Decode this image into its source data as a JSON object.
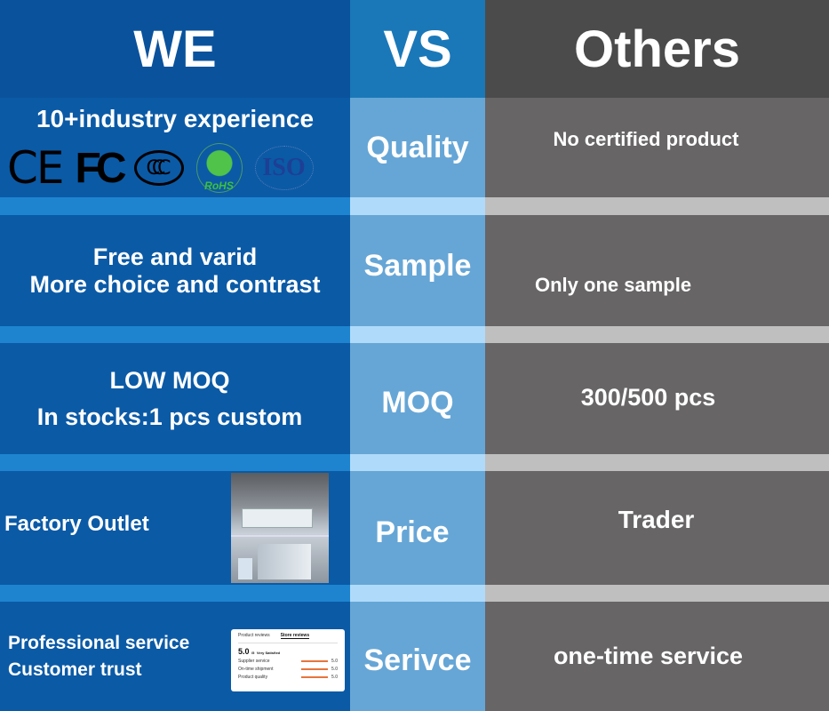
{
  "header": {
    "we": "WE",
    "vs": "VS",
    "others": "Others"
  },
  "rows": [
    {
      "we": "10+industry experience",
      "vs": "Quality",
      "others": "No certified product",
      "certs": [
        "CE",
        "FC",
        "CCC",
        "RoHS",
        "ISO"
      ]
    },
    {
      "we_line1": "Free and varid",
      "we_line2": "More choice and contrast",
      "vs": "Sample",
      "others": "Only one sample"
    },
    {
      "we_line1": "LOW MOQ",
      "we_line2": "In stocks:1 pcs custom",
      "vs": "MOQ",
      "others": "300/500 pcs"
    },
    {
      "we": "Factory Outlet",
      "vs": "Price",
      "others": "Trader"
    },
    {
      "we_line1": "Professional service",
      "we_line2": "Customer trust",
      "vs": "Serivce",
      "others": "one-time service"
    }
  ],
  "review_card": {
    "tab1": "Product reviews",
    "tab2": "Store reviews",
    "score": "5.0",
    "out_of": "/5",
    "rating_text": "Very Satisfied",
    "items": [
      {
        "label": "Supplier service",
        "value": "5.0"
      },
      {
        "label": "On-time shipment",
        "value": "5.0"
      },
      {
        "label": "Product quality",
        "value": "5.0"
      }
    ]
  },
  "colors": {
    "we": "#0b5aa6",
    "vs": "#66a6d6",
    "others": "#676565"
  }
}
